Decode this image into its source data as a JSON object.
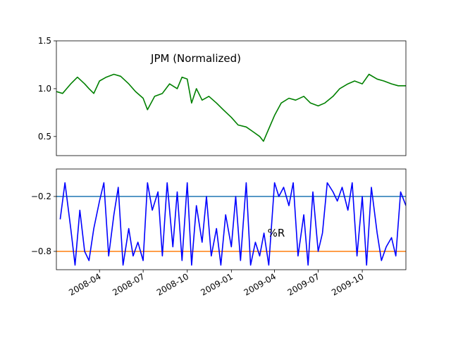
{
  "chart_data": [
    {
      "type": "line",
      "title": "JPM (Normalized)",
      "xlabel": "",
      "ylabel": "",
      "x_range": [
        "2008-01-02",
        "2009-12-31"
      ],
      "ylim": [
        0.3,
        1.5
      ],
      "yticks": [
        0.5,
        1.0,
        1.5
      ],
      "ytick_labels": [
        "0.5",
        "1.0",
        "1.5"
      ],
      "grid": false,
      "series": [
        {
          "color": "#008000",
          "x": [
            "2008-01-02",
            "2008-01-15",
            "2008-02-01",
            "2008-02-15",
            "2008-03-01",
            "2008-03-10",
            "2008-03-20",
            "2008-04-01",
            "2008-04-15",
            "2008-05-01",
            "2008-05-15",
            "2008-06-01",
            "2008-06-15",
            "2008-07-01",
            "2008-07-10",
            "2008-07-25",
            "2008-08-10",
            "2008-08-25",
            "2008-09-10",
            "2008-09-20",
            "2008-10-01",
            "2008-10-10",
            "2008-10-20",
            "2008-11-01",
            "2008-11-15",
            "2008-12-01",
            "2008-12-15",
            "2009-01-01",
            "2009-01-15",
            "2009-02-01",
            "2009-02-15",
            "2009-03-01",
            "2009-03-09",
            "2009-03-20",
            "2009-04-01",
            "2009-04-15",
            "2009-05-01",
            "2009-05-15",
            "2009-06-01",
            "2009-06-15",
            "2009-07-01",
            "2009-07-15",
            "2009-08-01",
            "2009-08-15",
            "2009-09-01",
            "2009-09-15",
            "2009-10-01",
            "2009-10-15",
            "2009-11-01",
            "2009-11-15",
            "2009-12-01",
            "2009-12-15",
            "2009-12-31"
          ],
          "values": [
            0.97,
            0.95,
            1.05,
            1.12,
            1.05,
            1.0,
            0.95,
            1.08,
            1.12,
            1.15,
            1.13,
            1.05,
            0.97,
            0.9,
            0.78,
            0.92,
            0.95,
            1.05,
            1.0,
            1.12,
            1.1,
            0.85,
            1.0,
            0.88,
            0.92,
            0.85,
            0.78,
            0.7,
            0.62,
            0.6,
            0.55,
            0.5,
            0.45,
            0.58,
            0.72,
            0.85,
            0.9,
            0.88,
            0.92,
            0.85,
            0.82,
            0.85,
            0.92,
            1.0,
            1.05,
            1.08,
            1.05,
            1.15,
            1.1,
            1.08,
            1.05,
            1.03,
            1.03
          ]
        }
      ]
    },
    {
      "type": "line",
      "title": "%R",
      "xlabel": "",
      "ylabel": "",
      "x_range": [
        "2008-01-02",
        "2009-12-31"
      ],
      "ylim": [
        -1.0,
        0.1
      ],
      "yticks": [
        -0.8,
        -0.2
      ],
      "ytick_labels": [
        "−0.8",
        "−0.2"
      ],
      "xtick_labels": [
        "2008-04",
        "2008-07",
        "2008-10",
        "2009-01",
        "2009-04",
        "2009-07",
        "2009-10"
      ],
      "grid": false,
      "reference_lines": [
        {
          "y": -0.2,
          "color": "#1f77b4"
        },
        {
          "y": -0.8,
          "color": "#ff7f0e"
        }
      ],
      "series": [
        {
          "color": "#0000ff",
          "x": [
            "2008-01-10",
            "2008-01-20",
            "2008-02-01",
            "2008-02-10",
            "2008-02-20",
            "2008-03-01",
            "2008-03-10",
            "2008-03-20",
            "2008-04-01",
            "2008-04-10",
            "2008-04-20",
            "2008-05-01",
            "2008-05-10",
            "2008-05-20",
            "2008-06-01",
            "2008-06-10",
            "2008-06-20",
            "2008-07-01",
            "2008-07-10",
            "2008-07-20",
            "2008-08-01",
            "2008-08-10",
            "2008-08-20",
            "2008-09-01",
            "2008-09-10",
            "2008-09-20",
            "2008-10-01",
            "2008-10-10",
            "2008-10-20",
            "2008-11-01",
            "2008-11-10",
            "2008-11-20",
            "2008-12-01",
            "2008-12-10",
            "2008-12-20",
            "2009-01-01",
            "2009-01-10",
            "2009-01-20",
            "2009-02-01",
            "2009-02-10",
            "2009-02-20",
            "2009-03-01",
            "2009-03-10",
            "2009-03-20",
            "2009-04-01",
            "2009-04-10",
            "2009-04-20",
            "2009-05-01",
            "2009-05-10",
            "2009-05-20",
            "2009-06-01",
            "2009-06-10",
            "2009-06-20",
            "2009-07-01",
            "2009-07-10",
            "2009-07-20",
            "2009-08-01",
            "2009-08-10",
            "2009-08-20",
            "2009-09-01",
            "2009-09-10",
            "2009-09-20",
            "2009-10-01",
            "2009-10-10",
            "2009-10-20",
            "2009-11-01",
            "2009-11-10",
            "2009-11-20",
            "2009-12-01",
            "2009-12-10",
            "2009-12-20",
            "2009-12-31"
          ],
          "values": [
            -0.45,
            -0.05,
            -0.55,
            -0.95,
            -0.35,
            -0.8,
            -0.9,
            -0.55,
            -0.25,
            -0.05,
            -0.85,
            -0.4,
            -0.1,
            -0.95,
            -0.55,
            -0.85,
            -0.7,
            -0.9,
            -0.05,
            -0.35,
            -0.15,
            -0.85,
            -0.05,
            -0.75,
            -0.15,
            -0.9,
            -0.05,
            -0.95,
            -0.3,
            -0.7,
            -0.2,
            -0.85,
            -0.55,
            -0.95,
            -0.4,
            -0.75,
            -0.2,
            -0.9,
            -0.05,
            -0.95,
            -0.7,
            -0.85,
            -0.6,
            -0.95,
            -0.05,
            -0.2,
            -0.1,
            -0.3,
            -0.05,
            -0.85,
            -0.4,
            -0.95,
            -0.15,
            -0.8,
            -0.6,
            -0.05,
            -0.15,
            -0.25,
            -0.1,
            -0.35,
            -0.05,
            -0.85,
            -0.2,
            -0.95,
            -0.1,
            -0.6,
            -0.9,
            -0.75,
            -0.65,
            -0.85,
            -0.15,
            -0.3
          ]
        }
      ]
    }
  ]
}
